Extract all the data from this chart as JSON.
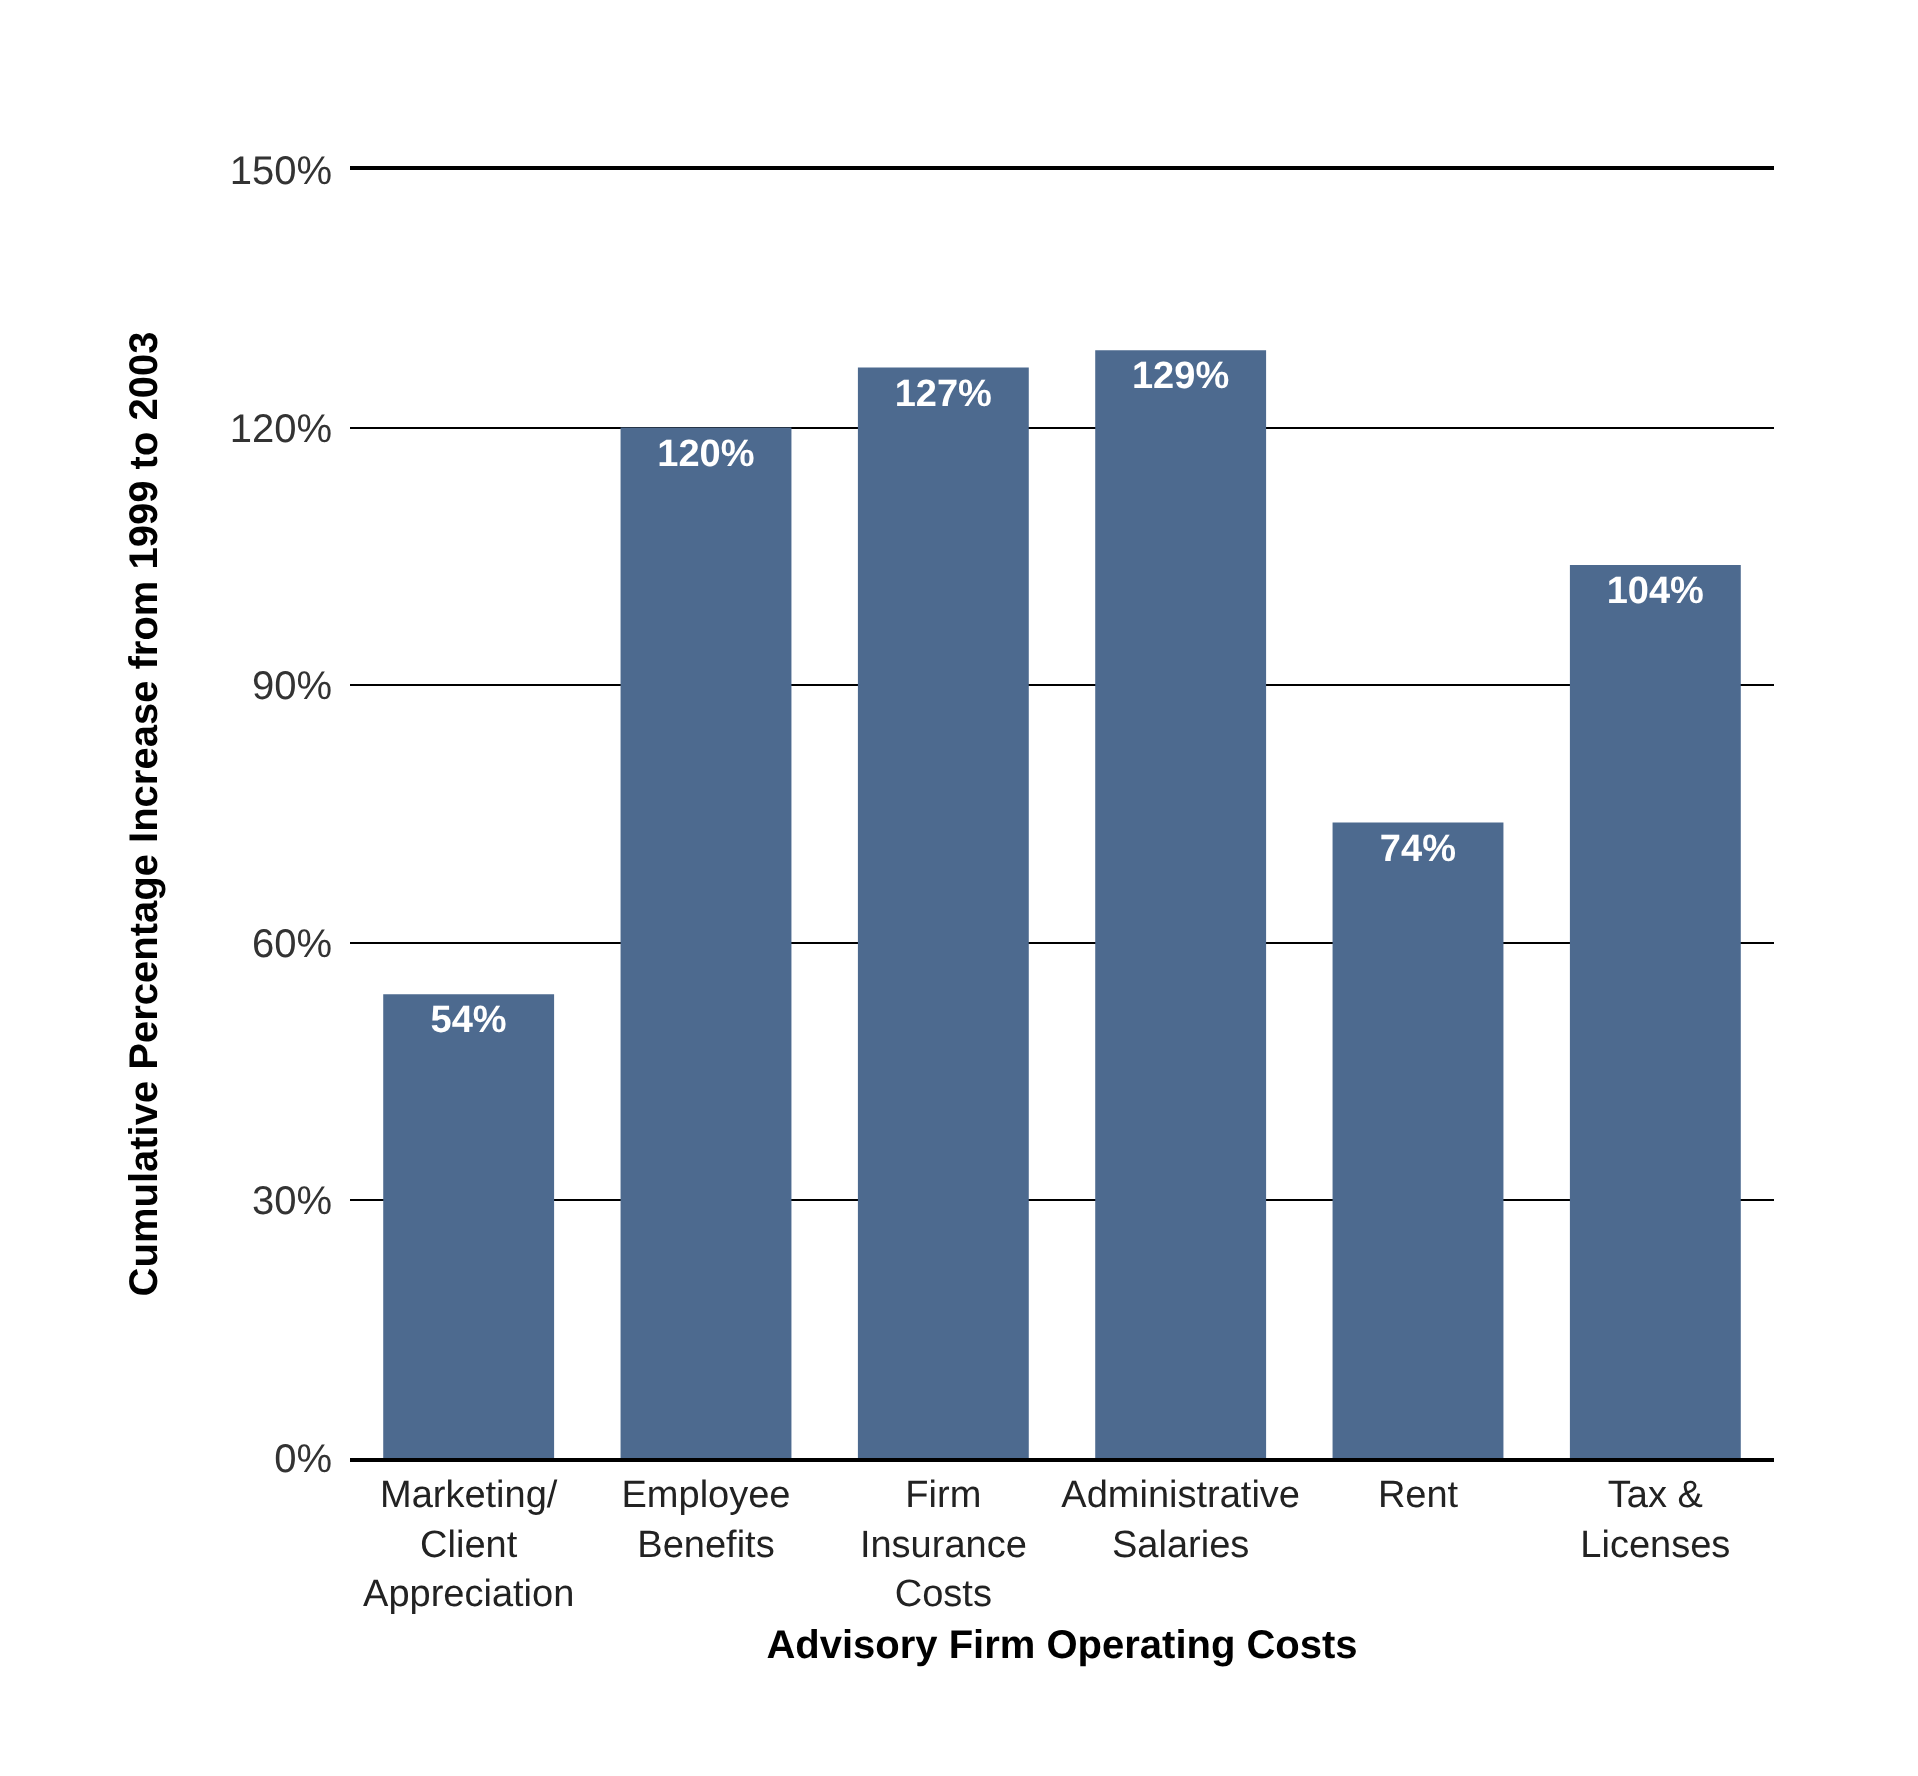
{
  "chart_data": {
    "type": "bar",
    "xlabel": "Advisory Firm Operating Costs",
    "ylabel": "Cumulative Percentage Increase from 1999 to 2003",
    "categories": [
      "Marketing/\nClient\nAppreciation",
      "Employee\nBenefits",
      "Firm\nInsurance\nCosts",
      "Administrative\nSalaries",
      "Rent",
      "Tax &\nLicenses"
    ],
    "values": [
      54,
      120,
      127,
      129,
      74,
      104
    ],
    "value_labels": [
      "54%",
      "120%",
      "127%",
      "129%",
      "74%",
      "104%"
    ],
    "color": "#4d6a8f",
    "ylim": [
      0,
      150
    ],
    "yticks": [
      {
        "value": 0,
        "label": "0%"
      },
      {
        "value": 30,
        "label": "30%"
      },
      {
        "value": 60,
        "label": "60%"
      },
      {
        "value": 90,
        "label": "90%"
      },
      {
        "value": 120,
        "label": "120%"
      },
      {
        "value": 150,
        "label": "150%"
      }
    ],
    "grid": "y"
  }
}
